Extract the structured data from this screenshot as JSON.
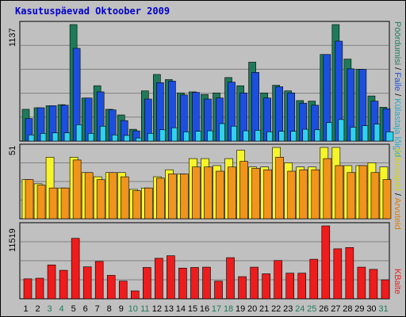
{
  "title": "Kasutuspäevad Oktoober 2009",
  "colors": {
    "background": "#c0c0c0",
    "grid": "#808080",
    "title": "#0000cc",
    "pages": "#1f7a5a",
    "files": "#1c4fe0",
    "hits": "#31d0f0",
    "visits": "#f5f52a",
    "sites": "#f0941c",
    "kbytes": "#ee1c1c",
    "weekend": "#1f7a5a"
  },
  "labels": {
    "top_right_pages": "Pöördumisi",
    "top_right_sep1": " / ",
    "top_right_files": "Faile",
    "top_right_sep2": " / ",
    "top_right_hits": "Külastaja lõigid",
    "mid_right_visits": "Külastajaid",
    "mid_right_sep": " / ",
    "mid_right_sites": "Arvuteid",
    "bottom_right": "KBaite",
    "top_ymax": "1137",
    "mid_ymax": "51",
    "bottom_ymax": "11519"
  },
  "chart_data": [
    {
      "type": "bar",
      "title": "Kasutuspäevad Oktoober 2009",
      "categories": [
        "1",
        "2",
        "3",
        "4",
        "5",
        "6",
        "7",
        "8",
        "9",
        "10",
        "11",
        "12",
        "13",
        "14",
        "15",
        "16",
        "17",
        "18",
        "19",
        "20",
        "21",
        "22",
        "23",
        "24",
        "25",
        "26",
        "27",
        "28",
        "29",
        "30",
        "31"
      ],
      "weekend_days": [
        "3",
        "4",
        "10",
        "11",
        "17",
        "18",
        "24",
        "25",
        "31"
      ],
      "ylim": [
        0,
        1137
      ],
      "series": [
        {
          "name": "Pöördumisi",
          "values": [
            310,
            325,
            345,
            355,
            1137,
            420,
            540,
            310,
            255,
            115,
            490,
            650,
            600,
            470,
            480,
            455,
            470,
            620,
            540,
            770,
            470,
            545,
            490,
            395,
            390,
            845,
            1137,
            800,
            700,
            440,
            330
          ]
        },
        {
          "name": "Faile",
          "values": [
            220,
            325,
            345,
            350,
            905,
            420,
            480,
            305,
            200,
            100,
            410,
            570,
            585,
            450,
            475,
            410,
            420,
            575,
            470,
            670,
            420,
            530,
            470,
            370,
            350,
            845,
            975,
            705,
            700,
            390,
            315
          ]
        },
        {
          "name": "Külastaja lõigid",
          "values": [
            60,
            75,
            80,
            80,
            160,
            75,
            145,
            60,
            55,
            30,
            75,
            110,
            130,
            90,
            95,
            100,
            170,
            145,
            100,
            105,
            90,
            95,
            95,
            115,
            110,
            180,
            210,
            135,
            150,
            165,
            90
          ]
        }
      ]
    },
    {
      "type": "bar",
      "categories": [
        "1",
        "2",
        "3",
        "4",
        "5",
        "6",
        "7",
        "8",
        "9",
        "10",
        "11",
        "12",
        "13",
        "14",
        "15",
        "16",
        "17",
        "18",
        "19",
        "20",
        "21",
        "22",
        "23",
        "24",
        "25",
        "26",
        "27",
        "28",
        "29",
        "30",
        "31"
      ],
      "ylim": [
        0,
        51
      ],
      "series": [
        {
          "name": "Külastajaid",
          "values": [
            28,
            25,
            44,
            22,
            44,
            33,
            30,
            33,
            33,
            21,
            22,
            30,
            35,
            32,
            43,
            43,
            38,
            43,
            49,
            37,
            37,
            51,
            40,
            37,
            37,
            51,
            51,
            38,
            38,
            40,
            37
          ]
        },
        {
          "name": "Arvuteid",
          "values": [
            28,
            24,
            22,
            22,
            42,
            33,
            28,
            33,
            30,
            20,
            22,
            29,
            32,
            32,
            37,
            37,
            34,
            37,
            41,
            36,
            35,
            44,
            34,
            35,
            35,
            43,
            38,
            33,
            38,
            33,
            28
          ]
        }
      ]
    },
    {
      "type": "bar",
      "categories": [
        "1",
        "2",
        "3",
        "4",
        "5",
        "6",
        "7",
        "8",
        "9",
        "10",
        "11",
        "12",
        "13",
        "14",
        "15",
        "16",
        "17",
        "18",
        "19",
        "20",
        "21",
        "22",
        "23",
        "24",
        "25",
        "26",
        "27",
        "28",
        "29",
        "30",
        "31"
      ],
      "ylim": [
        0,
        11519
      ],
      "series": [
        {
          "name": "KBaite",
          "values": [
            3150,
            3250,
            5350,
            4500,
            9550,
            5050,
            5900,
            3700,
            2800,
            1250,
            4950,
            6400,
            6800,
            4850,
            4950,
            5000,
            2800,
            6500,
            3500,
            5000,
            3950,
            6050,
            4050,
            4050,
            6250,
            11519,
            7900,
            8100,
            5000,
            4650,
            3000
          ]
        }
      ]
    }
  ]
}
